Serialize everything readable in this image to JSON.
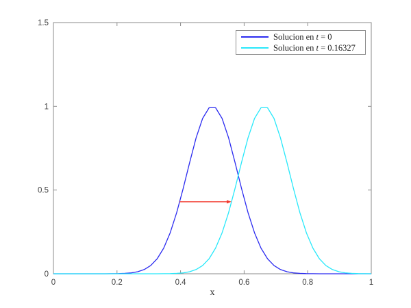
{
  "figure": {
    "background": "#ffffff"
  },
  "chart_data": {
    "type": "line",
    "title": "",
    "xlabel": "x",
    "ylabel": "",
    "xlim": [
      0,
      1
    ],
    "ylim": [
      0,
      1.5
    ],
    "grid": false,
    "legend_position": "top-right",
    "x_ticks": [
      0,
      0.2,
      0.4,
      0.6,
      0.8,
      1
    ],
    "x_tick_labels": [
      "0",
      "0.2",
      "0.4",
      "0.6",
      "0.8",
      "1"
    ],
    "y_ticks": [
      0,
      0.5,
      1,
      1.5
    ],
    "y_tick_labels": [
      "0",
      "0.5",
      "1",
      "1.5"
    ],
    "colors": {
      "axis": "#8b8b8b",
      "tick_label": "#3d3d3d"
    },
    "x": [
      0,
      0.0204,
      0.0408,
      0.0612,
      0.0816,
      0.102,
      0.1224,
      0.1429,
      0.1633,
      0.1837,
      0.2041,
      0.2245,
      0.2449,
      0.2653,
      0.2857,
      0.3061,
      0.3265,
      0.3469,
      0.3673,
      0.3878,
      0.4082,
      0.4286,
      0.449,
      0.4694,
      0.4898,
      0.5102,
      0.5306,
      0.551,
      0.5714,
      0.5918,
      0.6122,
      0.6327,
      0.6531,
      0.6735,
      0.6939,
      0.7143,
      0.7347,
      0.7551,
      0.7755,
      0.7959,
      0.8163,
      0.8367,
      0.8571,
      0.8776,
      0.898,
      0.9184,
      0.9388,
      0.9592,
      0.9796,
      1
    ],
    "series": [
      {
        "name": "Solucion en t = 0",
        "color": "#2b2bf0",
        "values": [
          0,
          0,
          0,
          0,
          0,
          0,
          0,
          0,
          0,
          0.0003,
          0.0009,
          0.0023,
          0.0055,
          0.0122,
          0.0254,
          0.0494,
          0.09,
          0.1534,
          0.2446,
          0.365,
          0.5093,
          0.6649,
          0.812,
          0.9277,
          0.9917,
          0.9917,
          0.9277,
          0.812,
          0.6649,
          0.5093,
          0.365,
          0.2446,
          0.1534,
          0.09,
          0.0494,
          0.0254,
          0.0122,
          0.0055,
          0.0023,
          0.0009,
          0.0003,
          0,
          0,
          0,
          0,
          0,
          0,
          0,
          0,
          0
        ]
      },
      {
        "name": "Solucion en t = 0.16327",
        "color": "#27e8fa",
        "values": [
          0,
          0,
          0,
          0,
          0,
          0,
          0,
          0,
          0,
          0,
          0,
          0,
          0,
          0,
          0,
          0,
          0,
          0.0003,
          0.0009,
          0.0023,
          0.0055,
          0.0122,
          0.0254,
          0.0494,
          0.09,
          0.1534,
          0.2446,
          0.365,
          0.5093,
          0.6649,
          0.812,
          0.9277,
          0.9917,
          0.9917,
          0.9277,
          0.812,
          0.6649,
          0.5093,
          0.365,
          0.2446,
          0.1534,
          0.09,
          0.0494,
          0.0254,
          0.0122,
          0.0055,
          0.0023,
          0.0009,
          0.0003,
          0
        ]
      }
    ],
    "annotation_arrow": {
      "x1": 0.397,
      "y1": 0.43,
      "x2": 0.5603,
      "y2": 0.43,
      "color": "#f2392e"
    }
  },
  "legend": {
    "entries": [
      {
        "prefix": "Solucion en ",
        "symbol": "t",
        "rest": " = 0"
      },
      {
        "prefix": "Solucion en ",
        "symbol": "t",
        "rest": " = 0.16327"
      }
    ]
  }
}
